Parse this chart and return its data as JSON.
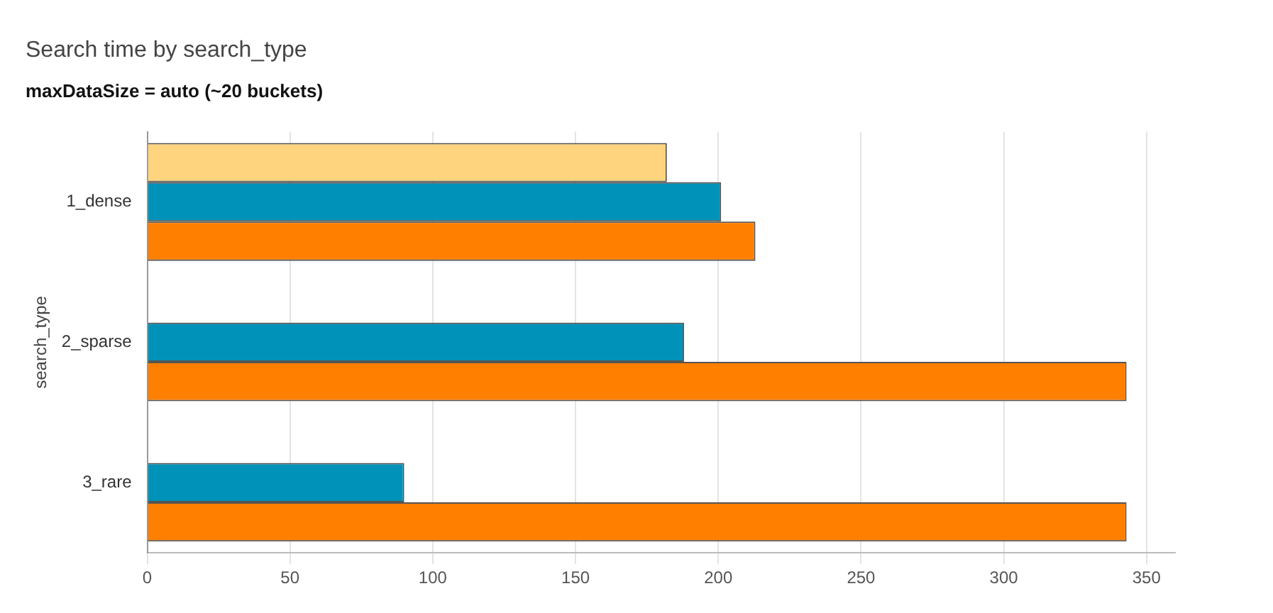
{
  "chart_data": {
    "type": "bar",
    "orientation": "horizontal",
    "title": "Search time by search_type",
    "subtitle": "maxDataSize = auto (~20 buckets)",
    "ylabel": "search_type",
    "categories": [
      "1_dense",
      "2_sparse",
      "3_rare"
    ],
    "series": [
      {
        "color": "#fed47e",
        "values": [
          182,
          null,
          null
        ]
      },
      {
        "color": "#0092b8",
        "values": [
          201,
          188,
          90
        ]
      },
      {
        "color": "#ff7f00",
        "values": [
          213,
          343,
          343
        ]
      }
    ],
    "xlim": [
      0,
      360
    ],
    "xticks": [
      0,
      50,
      100,
      150,
      200,
      250,
      300,
      350
    ],
    "grid": "x",
    "legend": false
  }
}
